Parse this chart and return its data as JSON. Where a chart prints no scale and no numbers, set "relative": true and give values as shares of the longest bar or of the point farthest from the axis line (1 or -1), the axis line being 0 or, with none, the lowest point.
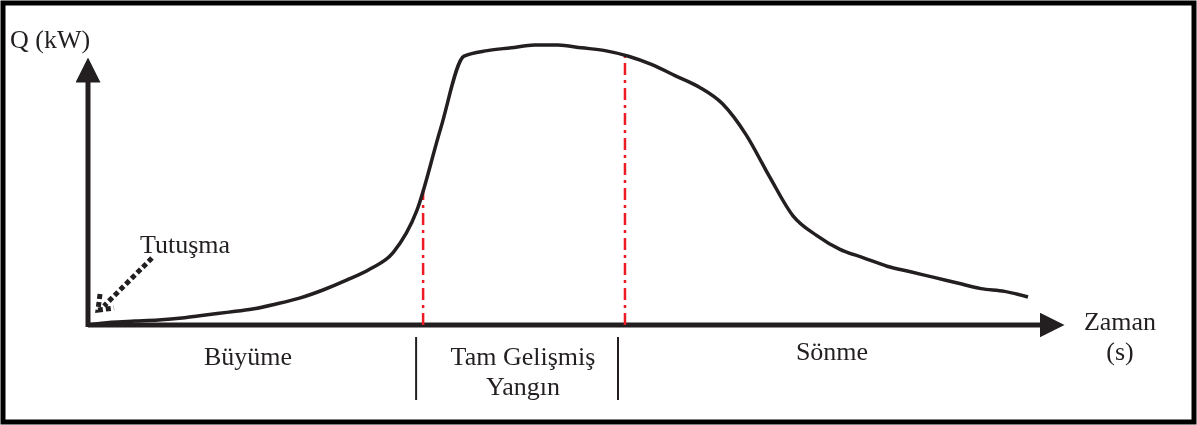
{
  "chart_data": {
    "type": "line",
    "relative": true,
    "xlabel": "Zaman (s)",
    "ylabel": "Q (kW)",
    "categories": [
      null,
      null,
      null,
      null,
      null,
      null,
      null,
      null,
      null,
      null,
      null,
      null,
      null,
      null,
      null,
      null,
      null,
      null,
      null,
      null,
      null,
      null,
      null,
      null,
      null,
      null,
      null,
      null,
      null,
      null,
      null,
      null,
      null,
      null,
      null,
      null,
      null,
      null,
      null,
      null,
      null
    ],
    "series": [
      {
        "color": "#231f20",
        "values": [
          0,
          0.01,
          0.014,
          0.018,
          0.025,
          0.036,
          0.046,
          0.057,
          0.075,
          0.096,
          0.125,
          0.16,
          0.2,
          0.26,
          0.41,
          0.7,
          0.96,
          0.98,
          0.99,
          1,
          1,
          0.99,
          0.98,
          0.96,
          0.93,
          0.89,
          0.85,
          0.79,
          0.68,
          0.53,
          0.39,
          0.32,
          0.27,
          0.24,
          0.21,
          0.19,
          0.17,
          0.15,
          0.13,
          0.12,
          0.1
        ]
      }
    ],
    "annotations": [
      "Tutuşma",
      "Büyüme",
      "Tam Gelişmiş Yangın",
      "Sönme"
    ],
    "marker": "none",
    "line_style": "solid"
  }
}
